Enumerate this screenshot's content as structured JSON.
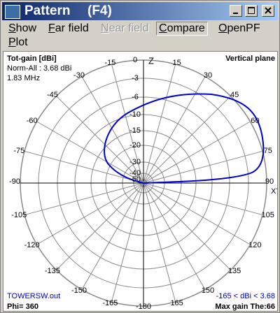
{
  "window": {
    "title": "Pattern",
    "shortcut": "(F4)",
    "menu": [
      "Show",
      "Far field",
      "Near field",
      "Compare",
      "OpenPF",
      "Plot"
    ]
  },
  "plot": {
    "gain_label": "Tot-gain [dBi]",
    "norm": "Norm-All : 3.68 dBi",
    "frequency": "1.83 MHz",
    "plane": "Vertical plane",
    "ring_labels": [
      -3,
      -6,
      -10,
      -15,
      -20,
      -30,
      -40,
      -50
    ],
    "angle_labels": [
      0,
      15,
      30,
      45,
      60,
      75,
      90,
      105,
      120,
      135,
      150,
      165,
      -180,
      -165,
      -150,
      -135,
      -120,
      -105,
      -90,
      -75,
      -60,
      -45,
      -30,
      -15
    ],
    "axis_z": "Z",
    "axis_xy": "XY",
    "file": "TOWERSW.out",
    "phi": "Phi= 360",
    "range": "-165 < dBi < 3.68",
    "max_gain": "Max gain The:66"
  }
}
